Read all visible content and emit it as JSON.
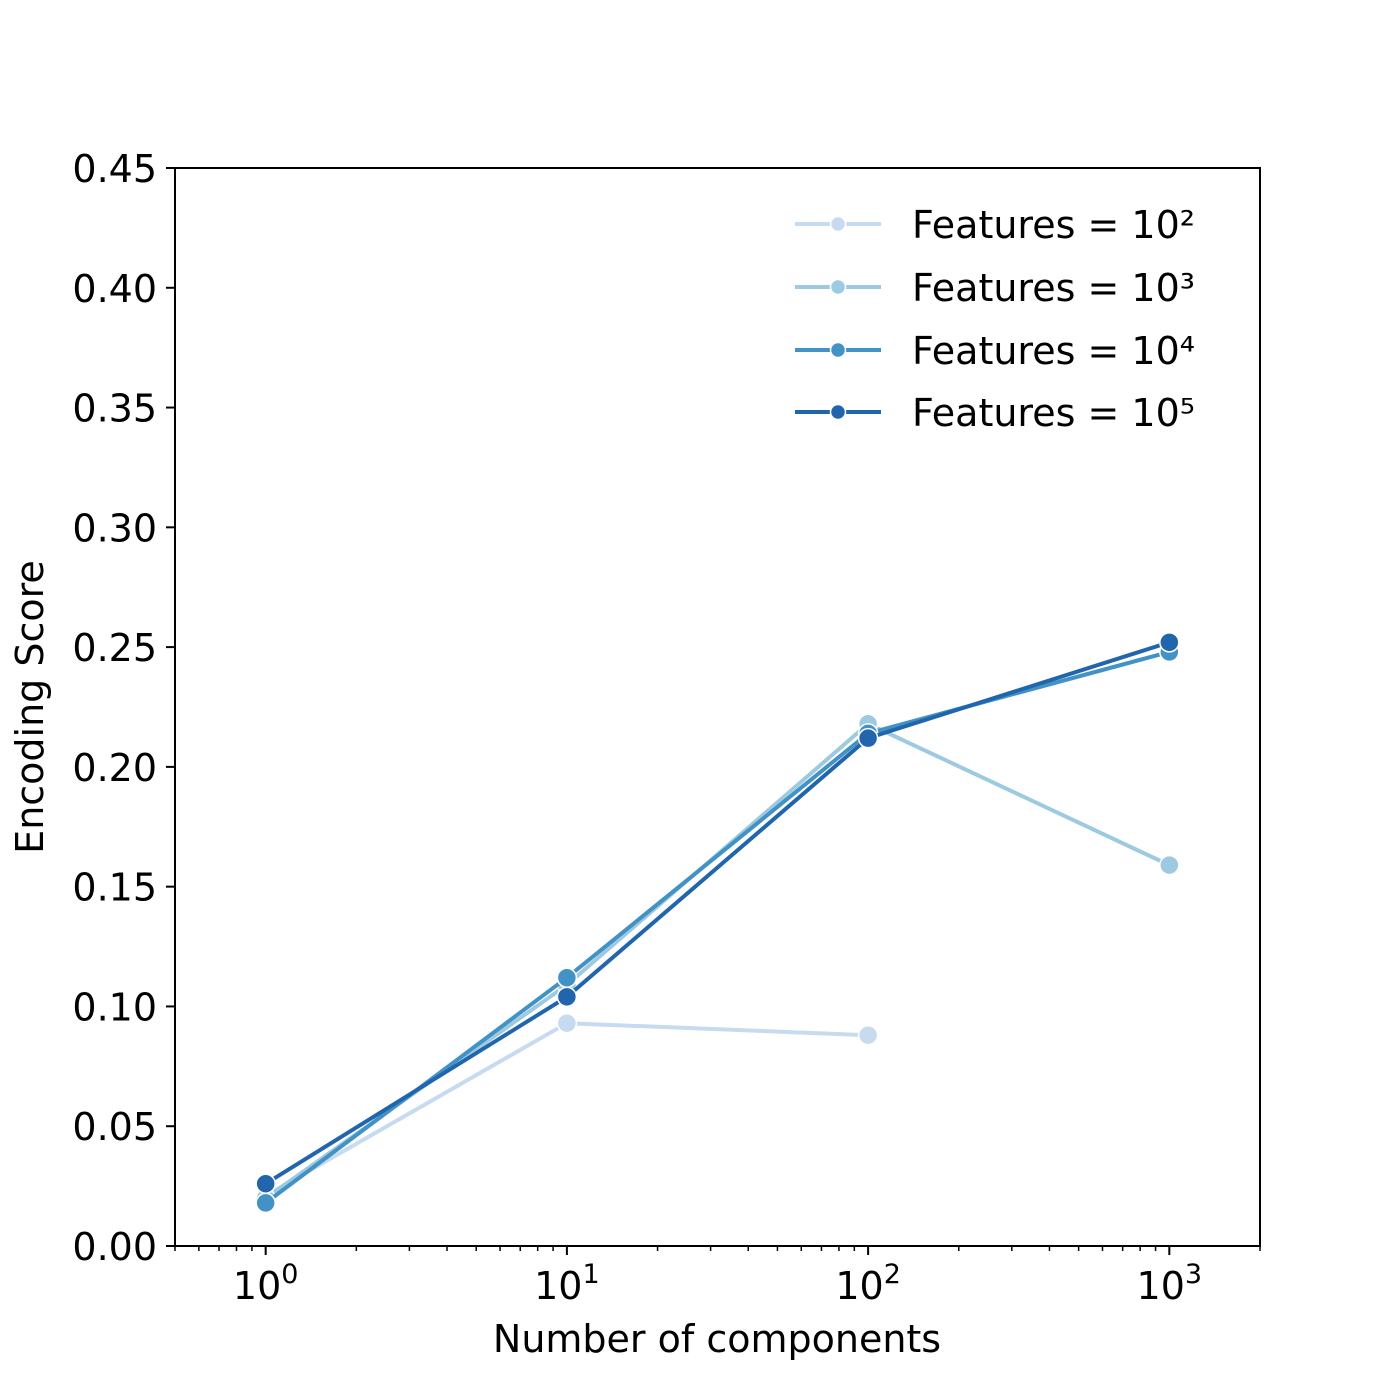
{
  "chart_data": {
    "type": "line",
    "xscale": "log",
    "xlabel": "Number of components",
    "ylabel": "Encoding Score",
    "xlim": [
      0.5,
      2000
    ],
    "ylim": [
      0,
      0.45
    ],
    "x_ticks": [
      1,
      10,
      100,
      1000
    ],
    "x_tick_labels": [
      {
        "base": "10",
        "exp": "0"
      },
      {
        "base": "10",
        "exp": "1"
      },
      {
        "base": "10",
        "exp": "2"
      },
      {
        "base": "10",
        "exp": "3"
      }
    ],
    "y_ticks": [
      0.0,
      0.05,
      0.1,
      0.15,
      0.2,
      0.25,
      0.3,
      0.35,
      0.4,
      0.45
    ],
    "y_tick_labels": [
      "0.00",
      "0.05",
      "0.10",
      "0.15",
      "0.20",
      "0.25",
      "0.30",
      "0.35",
      "0.40",
      "0.45"
    ],
    "grid": false,
    "legend_position": "top-right",
    "series": [
      {
        "name": "Features = 10²",
        "color": "#c6dbef",
        "x": [
          1,
          10,
          100
        ],
        "y": [
          0.021,
          0.093,
          0.088
        ]
      },
      {
        "name": "Features = 10³",
        "color": "#9ecae1",
        "x": [
          1,
          10,
          100,
          1000
        ],
        "y": [
          0.02,
          0.109,
          0.218,
          0.159
        ]
      },
      {
        "name": "Features = 10⁴",
        "color": "#4292c6",
        "x": [
          1,
          10,
          100,
          1000
        ],
        "y": [
          0.018,
          0.112,
          0.214,
          0.248
        ]
      },
      {
        "name": "Features = 10⁵",
        "color": "#2166ac",
        "x": [
          1,
          10,
          100,
          1000
        ],
        "y": [
          0.026,
          0.104,
          0.212,
          0.252
        ]
      }
    ]
  }
}
